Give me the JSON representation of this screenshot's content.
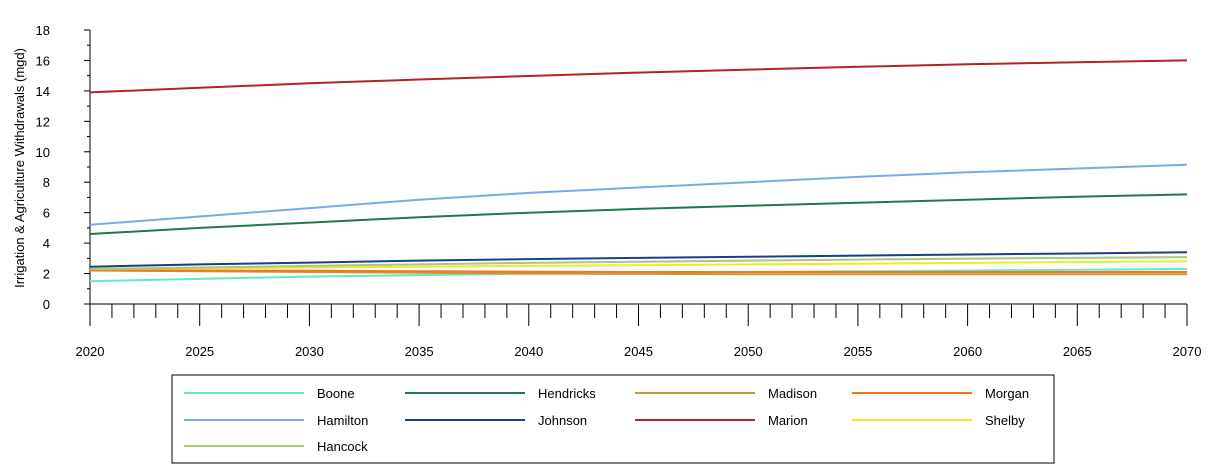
{
  "chart_data": {
    "type": "line",
    "title": "",
    "xlabel": "",
    "ylabel": "Irrigation & Agriculture Withdrawals (mgd)",
    "xlim": [
      2020,
      2070
    ],
    "ylim": [
      0,
      18
    ],
    "x_ticks": [
      "2020",
      "2025",
      "2030",
      "2035",
      "2040",
      "2045",
      "2050",
      "2055",
      "2060",
      "2065",
      "2070"
    ],
    "y_ticks": [
      "0",
      "2",
      "4",
      "6",
      "8",
      "10",
      "12",
      "14",
      "16",
      "18"
    ],
    "grid": false,
    "legend_position": "bottom",
    "x": [
      2020,
      2025,
      2030,
      2035,
      2040,
      2045,
      2050,
      2055,
      2060,
      2065,
      2070
    ],
    "series": [
      {
        "name": "Boone",
        "color": "#66e8c4",
        "values": [
          1.5,
          1.65,
          1.8,
          1.9,
          2.0,
          2.05,
          2.1,
          2.15,
          2.2,
          2.25,
          2.3
        ]
      },
      {
        "name": "Hendricks",
        "color": "#1f7a4a",
        "values": [
          4.6,
          5.0,
          5.35,
          5.7,
          6.0,
          6.25,
          6.45,
          6.65,
          6.85,
          7.05,
          7.2
        ]
      },
      {
        "name": "Madison",
        "color": "#c8963c",
        "values": [
          2.2,
          2.15,
          2.1,
          2.05,
          2.0,
          1.98,
          1.95,
          1.95,
          1.95,
          1.95,
          1.95
        ]
      },
      {
        "name": "Morgan",
        "color": "#f07820",
        "values": [
          2.2,
          2.2,
          2.18,
          2.15,
          2.12,
          2.1,
          2.1,
          2.1,
          2.1,
          2.1,
          2.1
        ]
      },
      {
        "name": "Hamilton",
        "color": "#7aa8f0",
        "values": [
          5.2,
          5.75,
          6.3,
          6.85,
          7.3,
          7.65,
          8.0,
          8.35,
          8.65,
          8.9,
          9.15
        ]
      },
      {
        "name": "Johnson",
        "color": "#1a3d8c",
        "values": [
          2.45,
          2.6,
          2.72,
          2.85,
          2.95,
          3.03,
          3.1,
          3.18,
          3.25,
          3.32,
          3.4
        ]
      },
      {
        "name": "Marion",
        "color": "#b02424",
        "values": [
          13.9,
          14.2,
          14.5,
          14.75,
          14.98,
          15.2,
          15.4,
          15.58,
          15.75,
          15.88,
          16.0
        ]
      },
      {
        "name": "Shelby",
        "color": "#f0e82a",
        "values": [
          2.3,
          2.35,
          2.4,
          2.45,
          2.5,
          2.55,
          2.6,
          2.65,
          2.7,
          2.75,
          2.8
        ]
      },
      {
        "name": "Hancock",
        "color": "#a8c878",
        "values": [
          2.3,
          2.4,
          2.5,
          2.6,
          2.7,
          2.78,
          2.85,
          2.92,
          2.98,
          3.03,
          3.08
        ]
      }
    ]
  }
}
